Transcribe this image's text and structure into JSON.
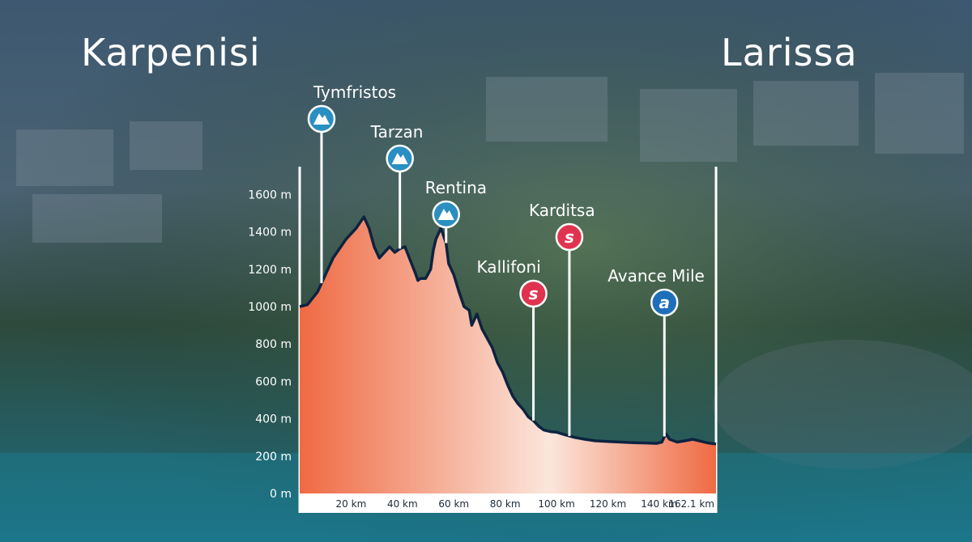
{
  "header": {
    "start_city": "Karpenisi",
    "end_city": "Larissa"
  },
  "colors": {
    "profile_fill_dark": "#ef6a43",
    "profile_fill_light": "#fbe6dc",
    "profile_line": "#0e2340",
    "climb_marker": "#2a8fc1",
    "sprint_marker": "#e0334f",
    "avance_marker": "#1e6fb8",
    "x_axis_band": "#ffffff"
  },
  "chart_data": {
    "type": "area",
    "title": "",
    "xlabel": "",
    "ylabel": "",
    "xlim": [
      0,
      162.1
    ],
    "ylim": [
      0,
      1700
    ],
    "y_ticks": [
      {
        "value": 0,
        "label": "0 m"
      },
      {
        "value": 200,
        "label": "200 m"
      },
      {
        "value": 400,
        "label": "400 m"
      },
      {
        "value": 600,
        "label": "600 m"
      },
      {
        "value": 800,
        "label": "800 m"
      },
      {
        "value": 1000,
        "label": "1000 m"
      },
      {
        "value": 1200,
        "label": "1200 m"
      },
      {
        "value": 1400,
        "label": "1400 m"
      },
      {
        "value": 1600,
        "label": "1600 m"
      }
    ],
    "x_ticks": [
      {
        "value": 20,
        "label": "20 km"
      },
      {
        "value": 40,
        "label": "40 km"
      },
      {
        "value": 60,
        "label": "60 km"
      },
      {
        "value": 80,
        "label": "80 km"
      },
      {
        "value": 100,
        "label": "100 km"
      },
      {
        "value": 120,
        "label": "120 km"
      },
      {
        "value": 140,
        "label": "140 km"
      },
      {
        "value": 162.1,
        "label": "162.1 km"
      }
    ],
    "series": [
      {
        "x": [
          0,
          3,
          7,
          10,
          13,
          16,
          18,
          20,
          22,
          24,
          25,
          27,
          29,
          31,
          33,
          35,
          37,
          39,
          41,
          43,
          45,
          46,
          47,
          49,
          51,
          52,
          53,
          55,
          57,
          58,
          60,
          62,
          64,
          66,
          67,
          69,
          71,
          73,
          75,
          77,
          79,
          81,
          83,
          85,
          87,
          89,
          91,
          93,
          95,
          98,
          100,
          103,
          107,
          111,
          115,
          120,
          125,
          130,
          135,
          139,
          141,
          142.5,
          144,
          147,
          150,
          153,
          156,
          159,
          162.1
        ],
        "y": [
          1000,
          1010,
          1080,
          1170,
          1260,
          1320,
          1360,
          1390,
          1420,
          1460,
          1480,
          1420,
          1320,
          1260,
          1290,
          1320,
          1290,
          1310,
          1320,
          1250,
          1180,
          1140,
          1150,
          1150,
          1200,
          1300,
          1360,
          1420,
          1340,
          1230,
          1170,
          1080,
          1000,
          980,
          900,
          960,
          880,
          830,
          780,
          700,
          650,
          580,
          520,
          480,
          450,
          410,
          390,
          360,
          340,
          330,
          328,
          315,
          300,
          290,
          282,
          278,
          275,
          272,
          270,
          268,
          275,
          320,
          290,
          275,
          282,
          290,
          280,
          270,
          265
        ]
      }
    ],
    "points_of_interest": [
      {
        "name": "Tymfristos",
        "type": "climb",
        "km": 8.5,
        "symbol": "mountain-icon"
      },
      {
        "name": "Tarzan",
        "type": "climb",
        "km": 39,
        "symbol": "mountain-icon"
      },
      {
        "name": "Rentina",
        "type": "climb",
        "km": 57,
        "symbol": "mountain-icon"
      },
      {
        "name": "Kallifoni",
        "type": "sprint",
        "km": 91,
        "letter": "s",
        "symbol": "sprint-icon"
      },
      {
        "name": "Karditsa",
        "type": "sprint",
        "km": 105,
        "letter": "s",
        "symbol": "sprint-icon"
      },
      {
        "name": "Avance Mile",
        "type": "avance",
        "km": 142,
        "letter": "a",
        "symbol": "avance-icon"
      }
    ]
  }
}
